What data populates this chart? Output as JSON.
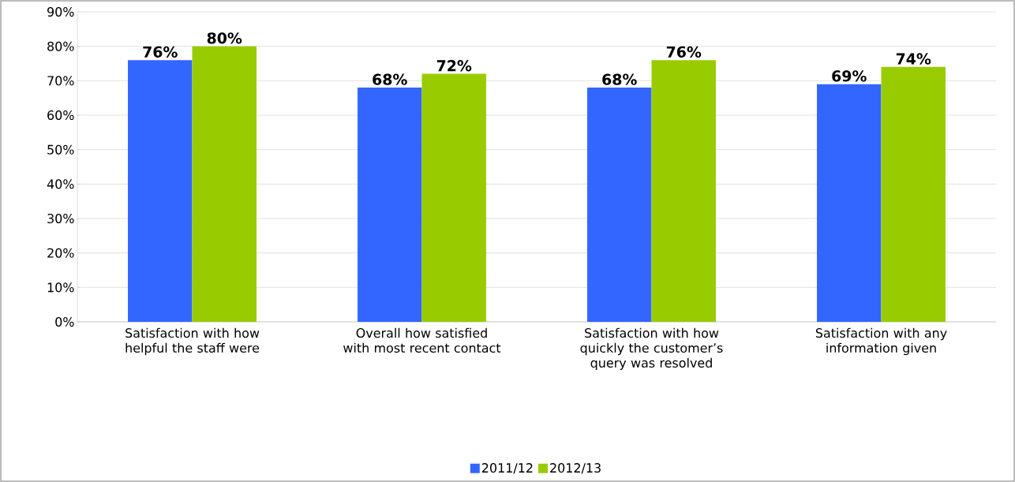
{
  "chart_data": {
    "type": "bar",
    "categories": [
      "Satisfaction with how helpful the staff were",
      "Overall how satisfied with most recent contact",
      "Satisfaction with how quickly the customer’s query was resolved",
      "Satisfaction with any information given"
    ],
    "series": [
      {
        "name": "2011/12",
        "color": "#3366ff",
        "values": [
          76,
          68,
          68,
          69
        ],
        "value_labels": [
          "76%",
          "68%",
          "68%",
          "69%"
        ]
      },
      {
        "name": "2012/13",
        "color": "#99cc00",
        "values": [
          80,
          72,
          76,
          74
        ],
        "value_labels": [
          "80%",
          "72%",
          "76%",
          "74%"
        ]
      }
    ],
    "ylim": [
      0,
      90
    ],
    "yticks": [
      {
        "value": 0,
        "label": "0%"
      },
      {
        "value": 10,
        "label": "10%"
      },
      {
        "value": 20,
        "label": "20%"
      },
      {
        "value": 30,
        "label": "30%"
      },
      {
        "value": 40,
        "label": "40%"
      },
      {
        "value": 50,
        "label": "50%"
      },
      {
        "value": 60,
        "label": "60%"
      },
      {
        "value": 70,
        "label": "70%"
      },
      {
        "value": 80,
        "label": "80%"
      },
      {
        "value": 90,
        "label": "90%"
      }
    ],
    "grid": "y",
    "legend": "bottom"
  }
}
